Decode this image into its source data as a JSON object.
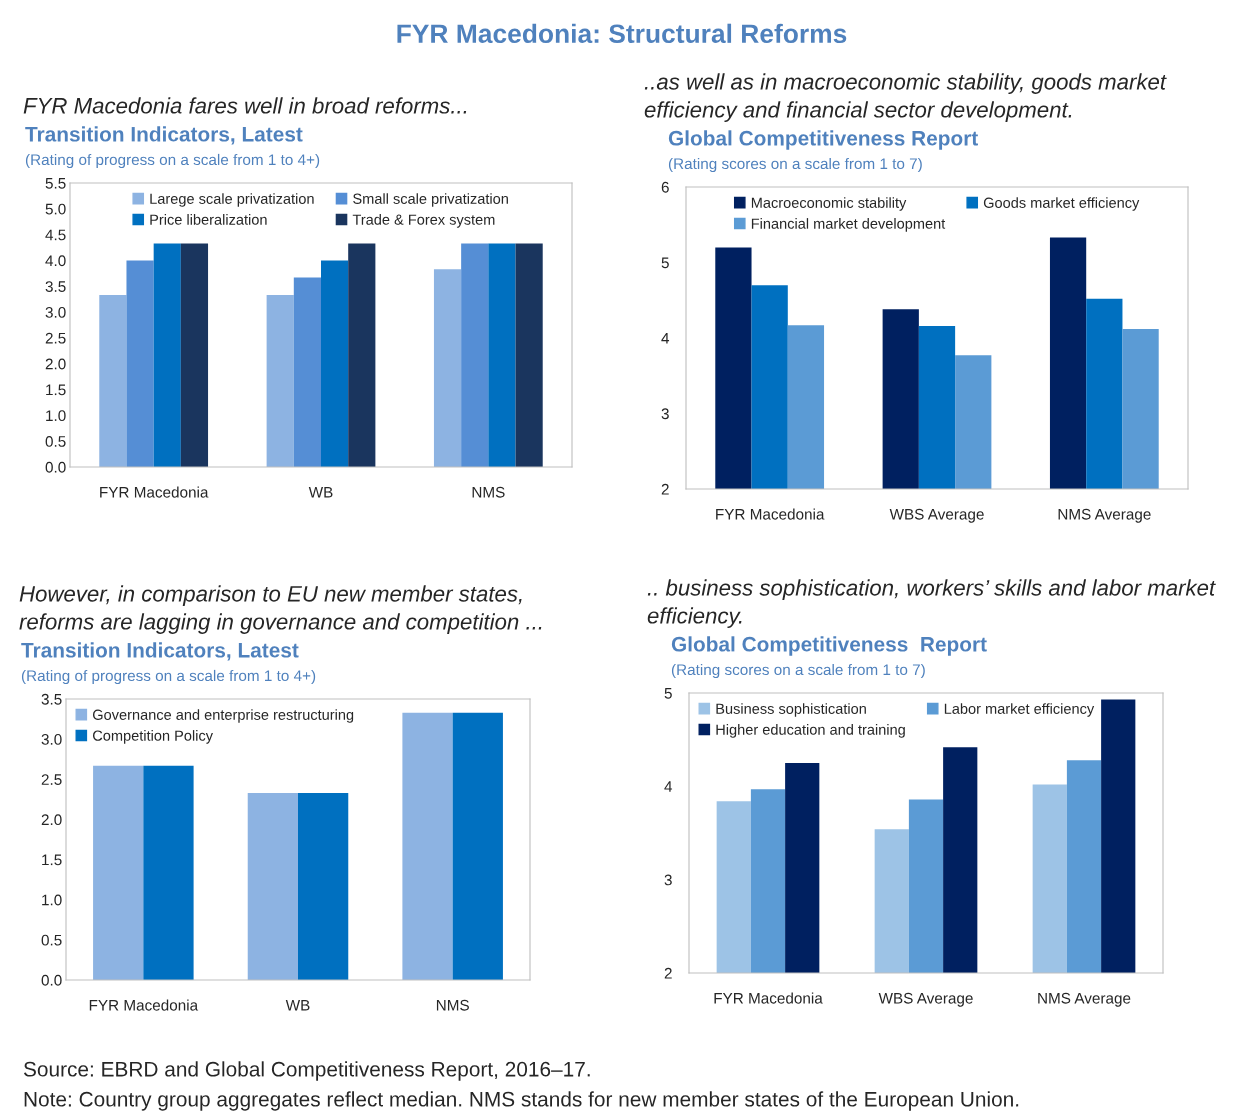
{
  "chart_data": [
    {
      "type": "bar",
      "title": "Transition Indicators, Latest",
      "subtitle": "(Rating of progress on a scale from 1 to 4+)",
      "annotations": [
        "FYR Macedonia: Structural Reforms",
        "FYR Macedonia fares well in broad reforms..."
      ],
      "categories": [
        "FYR Macedonia",
        "WB",
        "NMS"
      ],
      "series": [
        {
          "name": "Larege scale privatization",
          "color": "#8db3e2",
          "values": [
            3.33,
            3.33,
            3.83
          ]
        },
        {
          "name": "Small scale privatization",
          "color": "#558ed5",
          "values": [
            4.0,
            3.67,
            4.33
          ]
        },
        {
          "name": "Price liberalization",
          "color": "#0070c0",
          "values": [
            4.33,
            4.0,
            4.33
          ]
        },
        {
          "name": "Trade & Forex system",
          "color": "#1a355e",
          "values": [
            4.33,
            4.33,
            4.33
          ]
        }
      ],
      "ylim": [
        0,
        5.5
      ],
      "yticks": [
        {
          "value": 0,
          "label": "0.0"
        },
        0.5,
        {
          "value": 1,
          "label": "1.0"
        },
        1.5,
        {
          "value": 2,
          "label": "2.0"
        },
        2.5,
        {
          "value": 3,
          "label": "3.0"
        },
        3.5,
        {
          "value": 4,
          "label": "4.0"
        },
        4.5,
        {
          "value": 5,
          "label": "5.0"
        },
        5.5
      ],
      "legend": "top",
      "grid": false
    },
    {
      "type": "bar",
      "title": "Global Competitiveness Report",
      "subtitle": "(Rating scores on a scale from 1 to 7)",
      "annotations": [
        "..as well as in macroeconomic stability, goods market\nefficiency and financial sector development."
      ],
      "categories": [
        "FYR Macedonia",
        "WBS Average",
        "NMS Average"
      ],
      "series": [
        {
          "name": "Macroeconomic stability",
          "color": "#002060",
          "values": [
            5.2,
            4.38,
            5.33
          ]
        },
        {
          "name": "Goods market efficiency",
          "color": "#0070c0",
          "values": [
            4.7,
            4.16,
            4.52
          ]
        },
        {
          "name": "Financial market development",
          "color": "#5b9bd5",
          "values": [
            4.17,
            3.77,
            4.12
          ]
        }
      ],
      "ylim": [
        2,
        6
      ],
      "yticks": [
        2,
        3,
        4,
        5,
        6
      ],
      "legend": "top",
      "grid": false
    },
    {
      "type": "bar",
      "title": "Transition Indicators, Latest",
      "subtitle": "(Rating of progress on a scale from 1 to 4+)",
      "annotations": [
        "However, in comparison to EU new member states,\nreforms are lagging in governance and competition ..."
      ],
      "categories": [
        "FYR Macedonia",
        "WB",
        "NMS"
      ],
      "series": [
        {
          "name": "Governance and enterprise restructuring",
          "color": "#8db3e2",
          "values": [
            2.67,
            2.33,
            3.33
          ]
        },
        {
          "name": "Competition Policy",
          "color": "#0070c0",
          "values": [
            2.67,
            2.33,
            3.33
          ]
        }
      ],
      "ylim": [
        0,
        3.5
      ],
      "yticks": [
        {
          "value": 0,
          "label": "0.0"
        },
        0.5,
        {
          "value": 1,
          "label": "1.0"
        },
        1.5,
        {
          "value": 2,
          "label": "2.0"
        },
        2.5,
        {
          "value": 3,
          "label": "3.0"
        },
        3.5
      ],
      "legend": "top left",
      "grid": false
    },
    {
      "type": "bar",
      "title": "Global Competitiveness  Report",
      "subtitle": "(Rating scores on a scale from 1 to 7)",
      "annotations": [
        ".. business sophistication, workers’ skills and labor market\nefficiency.",
        "Source: EBRD and Global Competitiveness Report, 2016–17.",
        "Note: Country group aggregates reflect median. NMS stands for new member states of the European Union."
      ],
      "categories": [
        "FYR Macedonia",
        "WBS Average",
        "NMS Average"
      ],
      "series": [
        {
          "name": "Business sophistication",
          "color": "#9dc3e6",
          "values": [
            3.84,
            3.54,
            4.02
          ]
        },
        {
          "name": "Labor market efficiency",
          "color": "#5b9bd5",
          "values": [
            3.97,
            3.86,
            4.28
          ]
        },
        {
          "name": "Higher education and training",
          "color": "#002060",
          "values": [
            4.25,
            4.42,
            4.93
          ]
        }
      ],
      "ylim": [
        2,
        5
      ],
      "yticks": [
        2,
        3,
        4,
        5
      ],
      "legend": "top left",
      "grid": false
    }
  ]
}
